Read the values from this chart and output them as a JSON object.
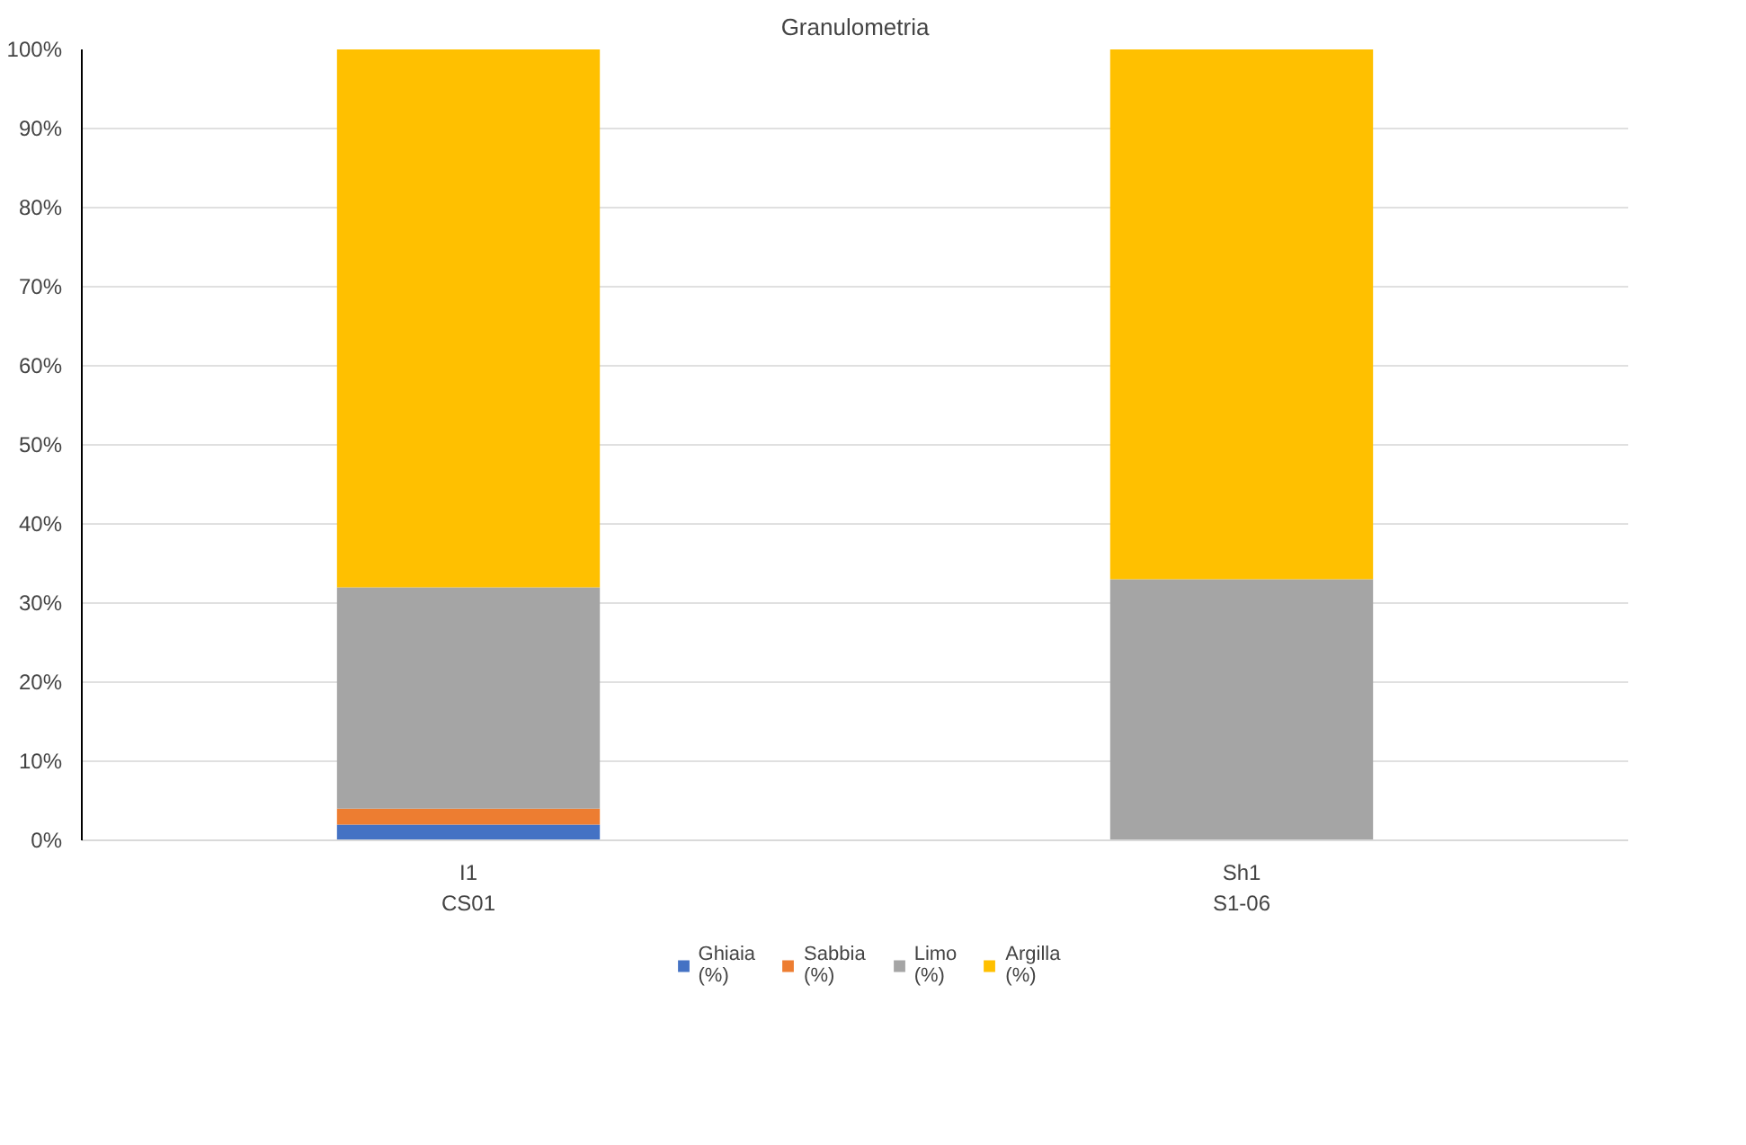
{
  "chart_data": {
    "type": "bar",
    "title": "Granulometria",
    "categories": [
      "I1\nCS01",
      "Sh1\nS1-06"
    ],
    "stacked": true,
    "series": [
      {
        "name": "Ghiaia\n(%)",
        "color": "#4472c4",
        "values": [
          2,
          0
        ]
      },
      {
        "name": "Sabbia\n(%)",
        "color": "#ed7d31",
        "values": [
          2,
          0
        ]
      },
      {
        "name": "Limo\n(%)",
        "color": "#a5a5a5",
        "values": [
          28,
          33
        ]
      },
      {
        "name": "Argilla\n(%)",
        "color": "#ffc000",
        "values": [
          68,
          67
        ]
      }
    ],
    "ylim": [
      0,
      100
    ],
    "yticks": [
      {
        "value": 0,
        "label": "0%"
      },
      {
        "value": 10,
        "label": "10%"
      },
      {
        "value": 20,
        "label": "20%"
      },
      {
        "value": 30,
        "label": "30%"
      },
      {
        "value": 40,
        "label": "40%"
      },
      {
        "value": 50,
        "label": "50%"
      },
      {
        "value": 60,
        "label": "60%"
      },
      {
        "value": 70,
        "label": "70%"
      },
      {
        "value": 80,
        "label": "80%"
      },
      {
        "value": 90,
        "label": "90%"
      },
      {
        "value": 100,
        "label": "100%"
      }
    ],
    "grid": "y",
    "legend": "bottom"
  }
}
